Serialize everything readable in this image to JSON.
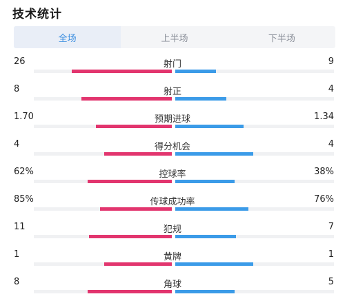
{
  "header": {
    "title": "技术统计"
  },
  "tabs": [
    {
      "label": "全场",
      "active": true
    },
    {
      "label": "上半场",
      "active": false
    },
    {
      "label": "下半场",
      "active": false
    }
  ],
  "colors": {
    "home": "#e2356e",
    "away": "#3b9be8",
    "tab_active": "#3d8fe0"
  },
  "stats": [
    {
      "label": "射门",
      "home": "26",
      "away": "9",
      "home_frac": 0.74,
      "away_frac": 0.26
    },
    {
      "label": "射正",
      "home": "8",
      "away": "4",
      "home_frac": 0.67,
      "away_frac": 0.33
    },
    {
      "label": "预期进球",
      "home": "1.70",
      "away": "1.34",
      "home_frac": 0.56,
      "away_frac": 0.44
    },
    {
      "label": "得分机会",
      "home": "4",
      "away": "4",
      "home_frac": 0.5,
      "away_frac": 0.5
    },
    {
      "label": "控球率",
      "home": "62%",
      "away": "38%",
      "home_frac": 0.62,
      "away_frac": 0.38
    },
    {
      "label": "传球成功率",
      "home": "85%",
      "away": "76%",
      "home_frac": 0.53,
      "away_frac": 0.47
    },
    {
      "label": "犯规",
      "home": "11",
      "away": "7",
      "home_frac": 0.61,
      "away_frac": 0.39
    },
    {
      "label": "黄牌",
      "home": "1",
      "away": "1",
      "home_frac": 0.5,
      "away_frac": 0.5
    },
    {
      "label": "角球",
      "home": "8",
      "away": "5",
      "home_frac": 0.62,
      "away_frac": 0.38
    }
  ]
}
